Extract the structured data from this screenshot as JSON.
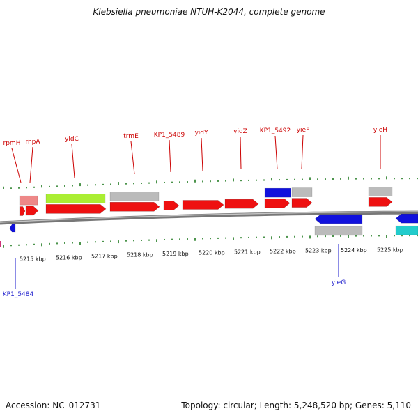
{
  "title": "Klebsiella pneumoniae NTUH-K2044, complete genome",
  "footer": {
    "accession": "Accession: NC_012731",
    "summary": "Topology: circular; Length: 5,248,520 bp; Genes: 5,110"
  },
  "colors": {
    "backbone": "#8a8a8a",
    "tick": "#1f7a1f",
    "label_forward": "#cc0000",
    "label_reverse": "#1a1acc",
    "gene_red": "#ee1111",
    "gene_pink": "#ee8888",
    "gene_green": "#aaee33",
    "gene_gray": "#bbbbbb",
    "gene_blue": "#1111dd",
    "gene_cyan": "#22cccc"
  },
  "scale_ticks": [
    "5215 kbp",
    "5216 kbp",
    "5217 kbp",
    "5218 kbp",
    "5219 kbp",
    "5220 kbp",
    "5221 kbp",
    "5222 kbp",
    "5223 kbp",
    "5224 kbp",
    "5225 kbp"
  ],
  "gene_labels": [
    {
      "name": "rpmH",
      "strand": "forward"
    },
    {
      "name": "rnpA",
      "strand": "forward"
    },
    {
      "name": "yidC",
      "strand": "forward"
    },
    {
      "name": "trmE",
      "strand": "forward"
    },
    {
      "name": "KP1_5489",
      "strand": "forward"
    },
    {
      "name": "yidY",
      "strand": "forward"
    },
    {
      "name": "yidZ",
      "strand": "forward"
    },
    {
      "name": "KP1_5492",
      "strand": "forward"
    },
    {
      "name": "yieF",
      "strand": "forward"
    },
    {
      "name": "yieH",
      "strand": "forward"
    },
    {
      "name": "KP1_5484",
      "strand": "reverse"
    },
    {
      "name": "yieG",
      "strand": "reverse"
    }
  ]
}
